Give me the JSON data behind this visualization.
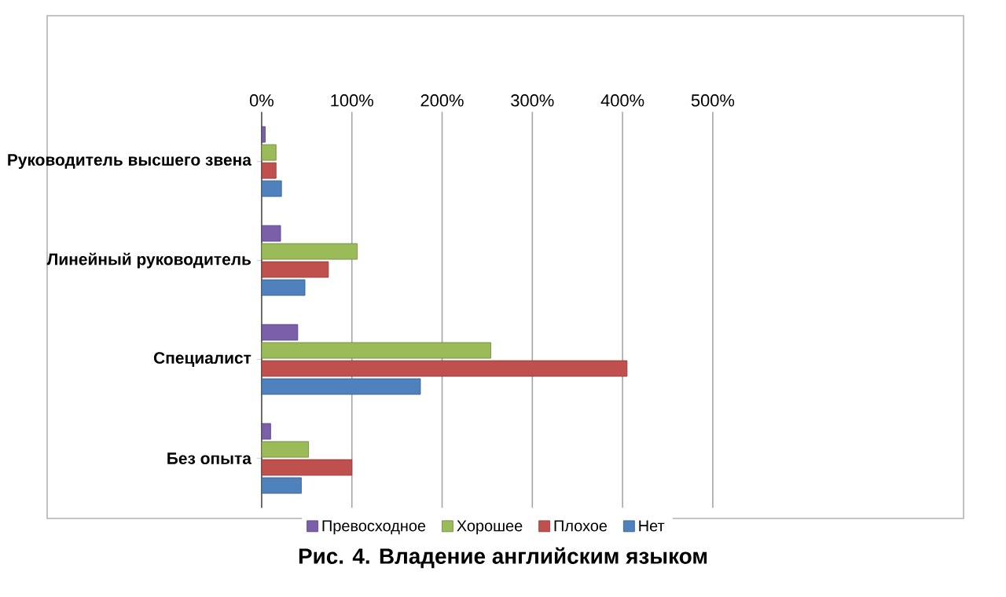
{
  "chart_data": {
    "type": "bar",
    "orientation": "horizontal",
    "title": "**Рис. 4. Владение английским языком**",
    "categories": [
      "Руководитель высшего звена",
      "Линейный руководитель",
      "Специалист",
      "Без опыта"
    ],
    "series": [
      {
        "name": "Превосходное",
        "color": "#7b5fa8",
        "values": [
          4,
          21,
          40,
          10
        ]
      },
      {
        "name": "Хорошее",
        "color": "#9bbb59",
        "values": [
          16,
          106,
          254,
          52
        ]
      },
      {
        "name": "Плохое",
        "color": "#c0504d",
        "values": [
          16,
          74,
          405,
          100
        ]
      },
      {
        "name": "Нет",
        "color": "#4f81bd",
        "values": [
          22,
          48,
          176,
          44
        ]
      }
    ],
    "xlim": [
      0,
      500
    ],
    "xticks": [
      {
        "value": 0,
        "label": "0%"
      },
      {
        "value": 100,
        "label": "100%"
      },
      {
        "value": 200,
        "label": "200%"
      },
      {
        "value": 300,
        "label": "300%"
      },
      {
        "value": 400,
        "label": "400%"
      },
      {
        "value": 500,
        "label": "500%"
      }
    ],
    "grid": "x",
    "legend": "bottom"
  }
}
